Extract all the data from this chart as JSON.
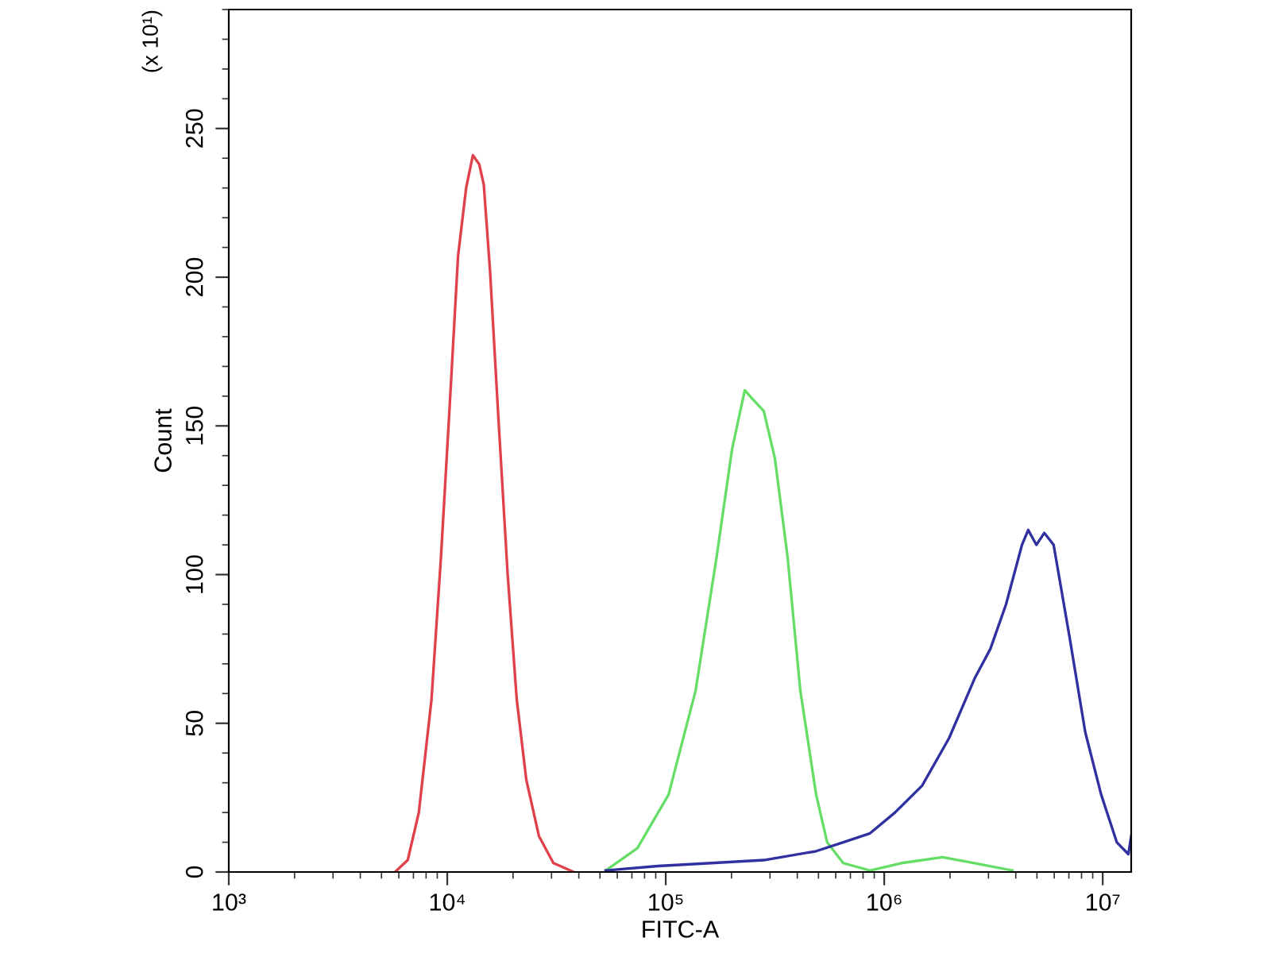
{
  "chart_data": {
    "type": "line",
    "xlabel": "FITC-A",
    "ylabel": "Count",
    "annotations": [
      "(x 10¹)"
    ],
    "log": "x",
    "grid": false,
    "legend": false,
    "xlim": [
      1000,
      13500000
    ],
    "xticks": [
      {
        "value": 1000,
        "label": "10³"
      },
      {
        "value": 10000,
        "label": "10⁴"
      },
      {
        "value": 100000,
        "label": "10⁵"
      },
      {
        "value": 1000000,
        "label": "10⁶"
      },
      {
        "value": 10000000,
        "label": "10⁷"
      }
    ],
    "ylim": [
      0,
      290
    ],
    "yticks": [
      0,
      50,
      100,
      150,
      200,
      250
    ],
    "series": [
      {
        "color": "#e0404a",
        "x": [
          5770,
          6590,
          7410,
          8470,
          9360,
          10300,
          11200,
          12200,
          13100,
          14000,
          14700,
          15700,
          17100,
          18900,
          20800,
          23000,
          26300,
          30600,
          38000
        ],
        "values": [
          0,
          4,
          20,
          58,
          106,
          159,
          207,
          230,
          241,
          238,
          231,
          202,
          154,
          100,
          58,
          31,
          12,
          3,
          0
        ]
      },
      {
        "color": "#66dd66",
        "x": [
          53100,
          74100,
          103000,
          137000,
          171000,
          201000,
          230000,
          250000,
          281000,
          316000,
          361000,
          413000,
          488000,
          548000,
          649000,
          861000,
          1200000,
          1850000,
          2590000,
          3860000
        ],
        "values": [
          0.5,
          8,
          26,
          61,
          106,
          142,
          162,
          159,
          155,
          139,
          106,
          61,
          26,
          10,
          3,
          0.5,
          3,
          5,
          3,
          0.5
        ]
      },
      {
        "color": "#3030a0",
        "x": [
          53100,
          92000,
          162000,
          281000,
          488000,
          649000,
          861000,
          1120000,
          1490000,
          1980000,
          2590000,
          3060000,
          3610000,
          4270000,
          4560000,
          4970000,
          5400000,
          5960000,
          7050000,
          8320000,
          9840000,
          11600000,
          13100000,
          13500000
        ],
        "values": [
          0.5,
          2,
          3,
          4,
          7,
          10,
          13,
          20,
          29,
          45,
          65,
          75,
          90,
          110,
          115,
          110,
          114,
          110,
          79,
          47,
          26,
          10,
          6,
          12
        ]
      }
    ]
  }
}
